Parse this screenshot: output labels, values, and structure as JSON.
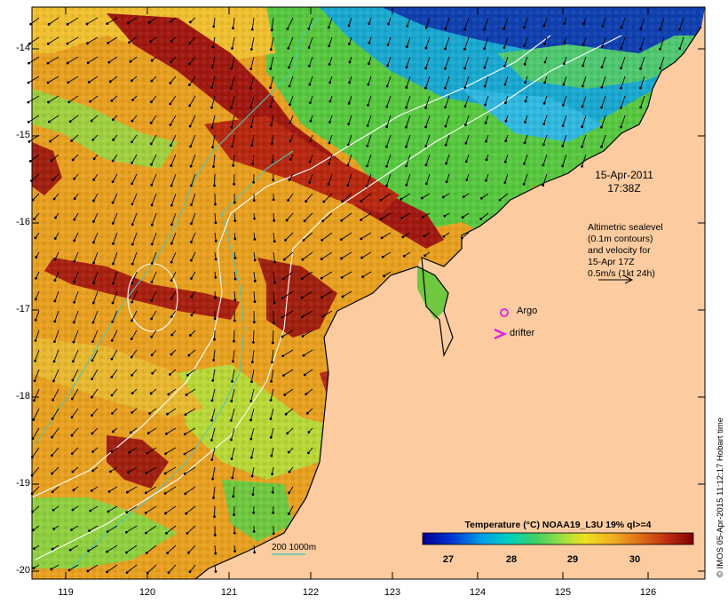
{
  "map": {
    "date_line1": "15-Apr-2011",
    "date_line2": "17:38Z",
    "altimetry_lines": [
      "Altimetric sealevel",
      "(0.1m contours)",
      "and velocity for",
      "15-Apr 17Z",
      "0.5m/s (1kt 24h)"
    ],
    "argo_label": "Argo",
    "drifter_label": "drifter",
    "depth_label": "200  1000m",
    "copyright": "© IMOS 05-Apr-2015 11:12:17 Hobart time",
    "lat_ticks": [
      "-14",
      "-15",
      "-16",
      "-17",
      "-18",
      "-19",
      "-20"
    ],
    "lon_ticks": [
      "119",
      "120",
      "121",
      "122",
      "123",
      "124",
      "125",
      "126"
    ],
    "land_color": "#fccca0",
    "argo_color": "#e020e0",
    "drifter_color": "#e020e0",
    "contour_200m_color": "#50c8b4"
  },
  "colorbar": {
    "title": "Temperature (°C) NOAA19_L3U 19% ql>=4",
    "ticks": [
      "27",
      "28",
      "29",
      "30"
    ],
    "colors": [
      "#000090",
      "#0020c0",
      "#0060e0",
      "#00a0e8",
      "#00c8d0",
      "#30d070",
      "#80e040",
      "#c8e030",
      "#f0d020",
      "#f0a020",
      "#e07018",
      "#c84010",
      "#a01008",
      "#800000"
    ]
  }
}
